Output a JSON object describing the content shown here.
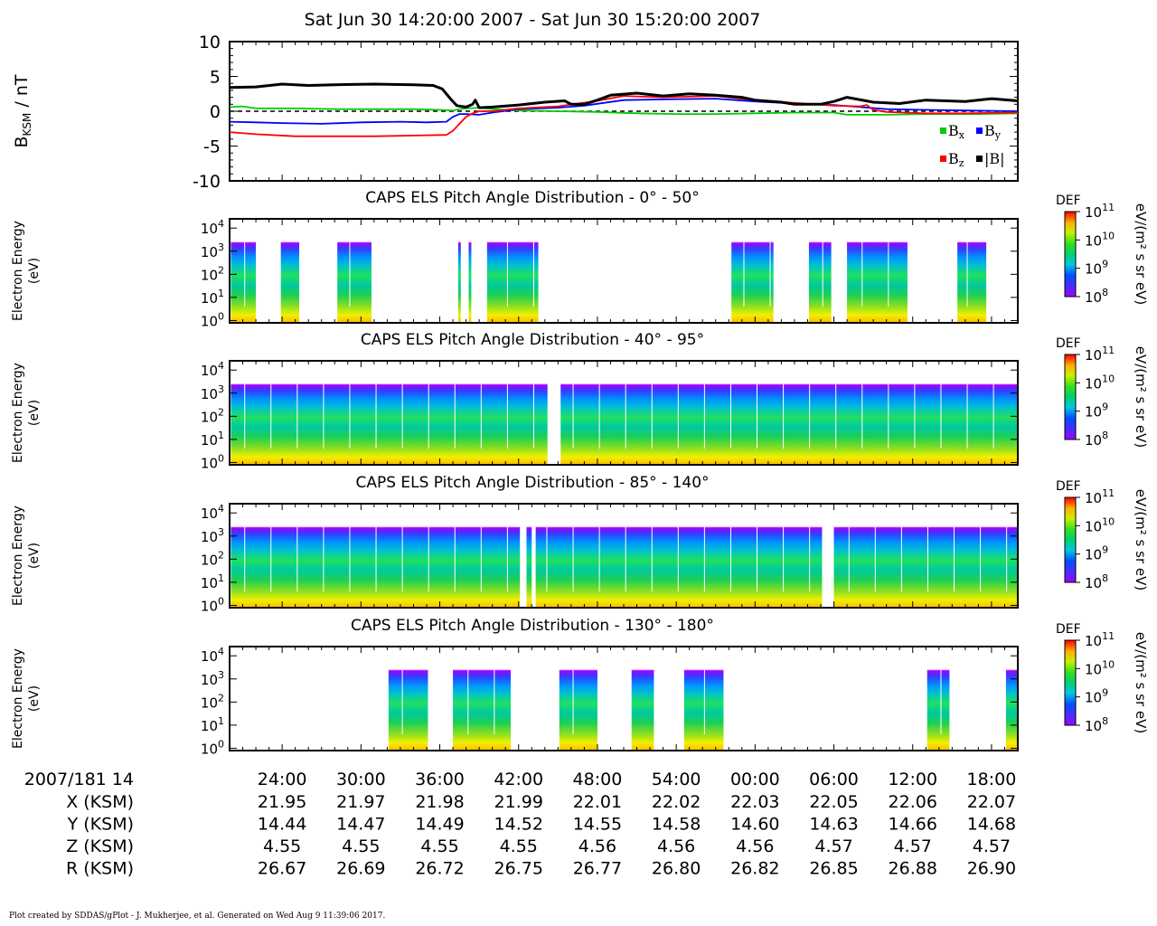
{
  "title": "Sat Jun 30 14:20:00 2007 - Sat Jun 30 15:20:00 2007",
  "footer": "Plot created by SDDAS/gPlot - J. Mukherjee, et al.  Generated on Wed Aug 9 11:39:06 2017.",
  "colors": {
    "bx": "#00cc00",
    "by": "#0000ff",
    "bz": "#ff0000",
    "bmag": "#000000"
  },
  "chart_data": [
    {
      "type": "line",
      "ylabel_main": "B",
      "ylabel_sub": "KSM",
      "ylabel_unit": " / nT",
      "ylim": [
        -10,
        10
      ],
      "yticks": [
        "10",
        "5",
        "0",
        "-5",
        "-10"
      ],
      "x_range_minutes": [
        20,
        80
      ],
      "legend": [
        {
          "main": "B",
          "sub": "x",
          "key": "bx"
        },
        {
          "main": "B",
          "sub": "y",
          "key": "by"
        },
        {
          "main": "B",
          "sub": "z",
          "key": "bz"
        },
        {
          "main": "|B|",
          "sub": "",
          "key": "bmag"
        }
      ],
      "series": [
        {
          "key": "bx",
          "points": [
            [
              20,
              0.6
            ],
            [
              21,
              0.7
            ],
            [
              22,
              0.4
            ],
            [
              25,
              0.4
            ],
            [
              28,
              0.3
            ],
            [
              31,
              0.3
            ],
            [
              34,
              0.3
            ],
            [
              36,
              0.2
            ],
            [
              37,
              0.1
            ],
            [
              37.5,
              0.3
            ],
            [
              38,
              0.4
            ],
            [
              39,
              0.5
            ],
            [
              40,
              0.3
            ],
            [
              42,
              0.1
            ],
            [
              45,
              0.0
            ],
            [
              48,
              -0.1
            ],
            [
              51,
              -0.3
            ],
            [
              54,
              -0.4
            ],
            [
              57,
              -0.4
            ],
            [
              60,
              -0.3
            ],
            [
              63,
              -0.2
            ],
            [
              66,
              -0.2
            ],
            [
              67,
              -0.5
            ],
            [
              70,
              -0.5
            ],
            [
              73,
              -0.4
            ],
            [
              77,
              -0.4
            ],
            [
              80,
              -0.3
            ]
          ]
        },
        {
          "key": "by",
          "points": [
            [
              20,
              -1.5
            ],
            [
              22,
              -1.6
            ],
            [
              24,
              -1.7
            ],
            [
              27,
              -1.8
            ],
            [
              30,
              -1.6
            ],
            [
              33,
              -1.5
            ],
            [
              35,
              -1.6
            ],
            [
              36.5,
              -1.5
            ],
            [
              37,
              -0.8
            ],
            [
              37.5,
              -0.4
            ],
            [
              38,
              -0.4
            ],
            [
              39,
              -0.5
            ],
            [
              40,
              -0.2
            ],
            [
              42,
              0.3
            ],
            [
              45,
              0.5
            ],
            [
              47,
              0.8
            ],
            [
              50,
              1.6
            ],
            [
              53,
              1.7
            ],
            [
              57,
              1.8
            ],
            [
              60,
              1.4
            ],
            [
              63,
              1.1
            ],
            [
              66,
              0.9
            ],
            [
              68,
              0.6
            ],
            [
              70,
              0.3
            ],
            [
              73,
              0.2
            ],
            [
              76,
              0.1
            ],
            [
              80,
              0.0
            ]
          ]
        },
        {
          "key": "bz",
          "points": [
            [
              20,
              -3.0
            ],
            [
              22,
              -3.3
            ],
            [
              25,
              -3.6
            ],
            [
              28,
              -3.6
            ],
            [
              31,
              -3.6
            ],
            [
              34,
              -3.5
            ],
            [
              36.5,
              -3.4
            ],
            [
              37,
              -2.8
            ],
            [
              37.5,
              -1.8
            ],
            [
              38,
              -0.8
            ],
            [
              38.5,
              -0.3
            ],
            [
              39,
              0.0
            ],
            [
              40,
              0.0
            ],
            [
              42,
              0.4
            ],
            [
              45,
              0.7
            ],
            [
              48,
              1.5
            ],
            [
              50,
              2.2
            ],
            [
              53,
              2.0
            ],
            [
              57,
              2.2
            ],
            [
              60,
              1.6
            ],
            [
              63,
              1.2
            ],
            [
              66,
              0.8
            ],
            [
              68,
              0.7
            ],
            [
              68.5,
              0.9
            ],
            [
              69,
              0.2
            ],
            [
              70,
              -0.1
            ],
            [
              73,
              -0.3
            ],
            [
              76,
              -0.3
            ],
            [
              80,
              -0.2
            ]
          ]
        },
        {
          "key": "bmag",
          "points": [
            [
              20,
              3.4
            ],
            [
              22,
              3.5
            ],
            [
              24,
              3.9
            ],
            [
              26,
              3.7
            ],
            [
              28,
              3.8
            ],
            [
              31,
              3.9
            ],
            [
              34,
              3.8
            ],
            [
              35.5,
              3.7
            ],
            [
              36.2,
              3.2
            ],
            [
              36.8,
              1.8
            ],
            [
              37.3,
              0.8
            ],
            [
              38,
              0.6
            ],
            [
              38.5,
              1.0
            ],
            [
              38.7,
              1.6
            ],
            [
              39,
              0.5
            ],
            [
              40,
              0.6
            ],
            [
              42,
              0.9
            ],
            [
              44,
              1.3
            ],
            [
              45.5,
              1.5
            ],
            [
              46,
              1.0
            ],
            [
              47,
              1.0
            ],
            [
              48,
              1.6
            ],
            [
              49,
              2.3
            ],
            [
              51,
              2.6
            ],
            [
              53,
              2.2
            ],
            [
              55,
              2.5
            ],
            [
              57,
              2.3
            ],
            [
              59,
              2.0
            ],
            [
              60,
              1.6
            ],
            [
              62,
              1.3
            ],
            [
              63,
              1.0
            ],
            [
              65,
              1.0
            ],
            [
              66,
              1.4
            ],
            [
              67,
              2.0
            ],
            [
              69,
              1.3
            ],
            [
              71,
              1.1
            ],
            [
              73,
              1.6
            ],
            [
              76,
              1.4
            ],
            [
              78,
              1.8
            ],
            [
              80,
              1.5
            ]
          ]
        }
      ]
    },
    {
      "type": "heatmap",
      "title": "CAPS ELS Pitch Angle Distribution - 0° - 50°",
      "ylabel": [
        "Electron Energy",
        "(eV)"
      ],
      "yaxis": "log",
      "ylim_log10": [
        -0.1,
        4.4
      ],
      "yticks": [
        "0",
        "1",
        "2",
        "3",
        "4"
      ],
      "colorbar": {
        "label": "DEF",
        "unit": "eV/(m² s sr eV)",
        "ticks": [
          "11",
          "10",
          "9",
          "8"
        ]
      },
      "data_segments_minutes": [
        [
          20.1,
          22.0
        ],
        [
          23.9,
          25.3
        ],
        [
          28.2,
          30.8
        ],
        [
          37.4,
          37.6
        ],
        [
          38.2,
          38.4
        ],
        [
          39.6,
          43.5
        ],
        [
          58.2,
          61.4
        ],
        [
          64.1,
          65.8
        ],
        [
          67.0,
          71.6
        ],
        [
          75.4,
          77.6
        ]
      ]
    },
    {
      "type": "heatmap",
      "title": "CAPS ELS Pitch Angle Distribution - 40° - 95°",
      "ylabel": [
        "Electron Energy",
        "(eV)"
      ],
      "yaxis": "log",
      "ylim_log10": [
        -0.1,
        4.4
      ],
      "yticks": [
        "0",
        "1",
        "2",
        "3",
        "4"
      ],
      "colorbar": {
        "label": "DEF",
        "unit": "eV/(m² s sr eV)",
        "ticks": [
          "11",
          "10",
          "9",
          "8"
        ]
      },
      "data_segments_minutes": [
        [
          20.1,
          44.2
        ],
        [
          45.2,
          80.0
        ]
      ]
    },
    {
      "type": "heatmap",
      "title": "CAPS ELS Pitch Angle Distribution - 85° - 140°",
      "ylabel": [
        "Electron Energy",
        "(eV)"
      ],
      "yaxis": "log",
      "ylim_log10": [
        -0.1,
        4.4
      ],
      "yticks": [
        "0",
        "1",
        "2",
        "3",
        "4"
      ],
      "colorbar": {
        "label": "DEF",
        "unit": "eV/(m² s sr eV)",
        "ticks": [
          "11",
          "10",
          "9",
          "8"
        ]
      },
      "data_segments_minutes": [
        [
          20.1,
          42.1
        ],
        [
          42.6,
          43.0
        ],
        [
          43.3,
          65.1
        ],
        [
          66.0,
          80.0
        ]
      ]
    },
    {
      "type": "heatmap",
      "title": "CAPS ELS Pitch Angle Distribution - 130° - 180°",
      "ylabel": [
        "Electron Energy",
        "(eV)"
      ],
      "yaxis": "log",
      "ylim_log10": [
        -0.1,
        4.4
      ],
      "yticks": [
        "0",
        "1",
        "2",
        "3",
        "4"
      ],
      "colorbar": {
        "label": "DEF",
        "unit": "eV/(m² s sr eV)",
        "ticks": [
          "11",
          "10",
          "9",
          "8"
        ]
      },
      "data_segments_minutes": [
        [
          32.1,
          35.1
        ],
        [
          37.0,
          41.4
        ],
        [
          45.1,
          48.0
        ],
        [
          50.6,
          52.3
        ],
        [
          54.6,
          57.6
        ],
        [
          73.1,
          74.8
        ],
        [
          79.1,
          80.0
        ]
      ]
    }
  ],
  "time_axis": {
    "start_label": "2007/181 14",
    "tick_minutes": [
      24,
      30,
      36,
      42,
      48,
      54,
      60,
      66,
      72,
      78
    ],
    "tick_labels": [
      "24:00",
      "30:00",
      "36:00",
      "42:00",
      "48:00",
      "54:00",
      "00:00",
      "06:00",
      "12:00",
      "18:00"
    ]
  },
  "ephemeris": [
    {
      "label": "X (KSM)",
      "values": [
        "21.95",
        "21.97",
        "21.98",
        "21.99",
        "22.01",
        "22.02",
        "22.03",
        "22.05",
        "22.06",
        "22.07"
      ]
    },
    {
      "label": "Y (KSM)",
      "values": [
        "14.44",
        "14.47",
        "14.49",
        "14.52",
        "14.55",
        "14.58",
        "14.60",
        "14.63",
        "14.66",
        "14.68"
      ]
    },
    {
      "label": "Z (KSM)",
      "values": [
        "4.55",
        "4.55",
        "4.55",
        "4.55",
        "4.56",
        "4.56",
        "4.56",
        "4.57",
        "4.57",
        "4.57"
      ]
    },
    {
      "label": "R (KSM)",
      "values": [
        "26.67",
        "26.69",
        "26.72",
        "26.75",
        "26.77",
        "26.80",
        "26.82",
        "26.85",
        "26.88",
        "26.90"
      ]
    }
  ]
}
